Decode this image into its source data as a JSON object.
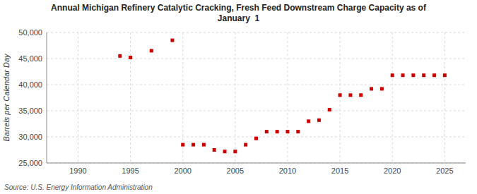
{
  "chart_data": {
    "type": "scatter",
    "title": "Annual Michigan Refinery Catalytic Cracking, Fresh Feed Downstream Charge Capacity as of\nJanuary  1",
    "ylabel": "Barrels per Calendar Day",
    "source": "Source: U.S. Energy Information Administration",
    "color": "#cc0000",
    "marker": "square",
    "grid": true,
    "xlim": [
      1987,
      2027
    ],
    "ylim": [
      25000,
      50000
    ],
    "xticks": [
      1990,
      1995,
      2000,
      2005,
      2010,
      2015,
      2020,
      2025
    ],
    "yticks": [
      {
        "value": 25000,
        "label": "25,000"
      },
      {
        "value": 30000,
        "label": "30,000"
      },
      {
        "value": 35000,
        "label": "35,000"
      },
      {
        "value": 40000,
        "label": "40,000"
      },
      {
        "value": 45000,
        "label": "45,000"
      },
      {
        "value": 50000,
        "label": "50,000"
      }
    ],
    "x": [
      1994,
      1995,
      1997,
      1999,
      2000,
      2001,
      2002,
      2003,
      2004,
      2005,
      2006,
      2007,
      2008,
      2009,
      2010,
      2011,
      2012,
      2013,
      2014,
      2015,
      2016,
      2017,
      2018,
      2019,
      2020,
      2021,
      2022,
      2023,
      2024,
      2025
    ],
    "values": [
      45500,
      45200,
      46500,
      48500,
      28500,
      28500,
      28500,
      27500,
      27200,
      27200,
      28500,
      29700,
      31000,
      31000,
      31000,
      31000,
      33000,
      33200,
      35200,
      38000,
      38000,
      38000,
      39200,
      39200,
      41800,
      41800,
      41800,
      41800,
      41800,
      41800
    ]
  }
}
